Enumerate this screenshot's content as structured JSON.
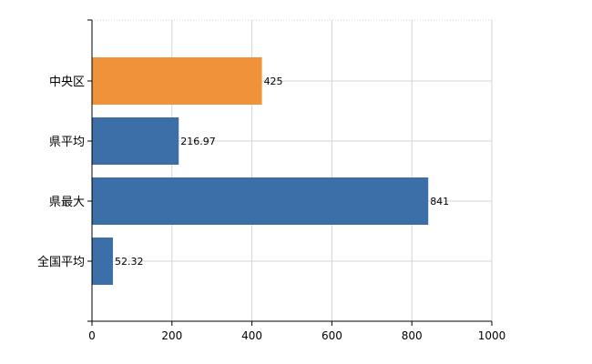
{
  "chart_data": {
    "type": "bar",
    "orientation": "horizontal",
    "categories": [
      "中央区",
      "県平均",
      "県最大",
      "全国平均"
    ],
    "values": [
      425,
      216.97,
      841,
      52.32
    ],
    "value_labels": [
      "425",
      "216.97",
      "841",
      "52.32"
    ],
    "colors": [
      "#f0923a",
      "#3c6ea7",
      "#3c6ea7",
      "#3c6ea7"
    ],
    "xlim": [
      0,
      1000
    ],
    "xticks": [
      0,
      200,
      400,
      600,
      800,
      1000
    ],
    "grid": true
  }
}
